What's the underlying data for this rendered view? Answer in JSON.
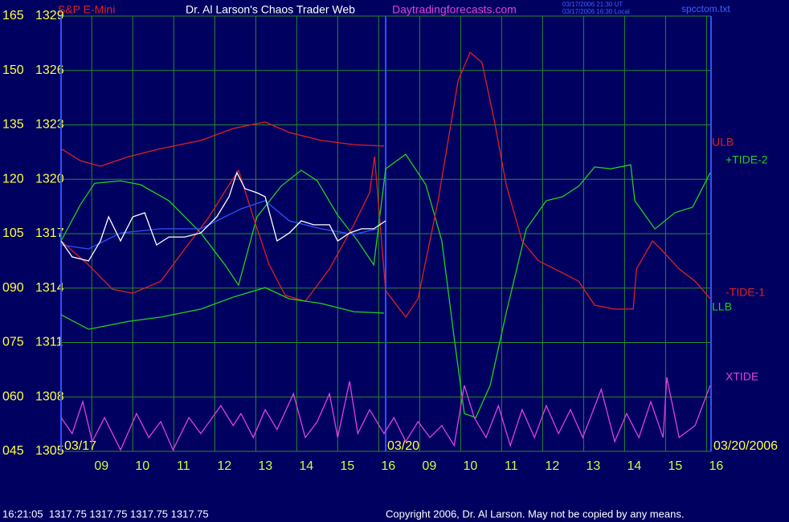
{
  "chart_data": {
    "type": "line",
    "symbol": "S&P E-Mini",
    "title": "Dr. Al Larson's Chaos Trader Web",
    "site": "Daytradingforecasts.com",
    "timestamp_ut": "03/17/2006 21:30 UT",
    "timestamp_local": "03/17/2006 16:30 Local",
    "file": "spcctom.txt",
    "date_labels": [
      "03/17",
      "03/20",
      "03/20/2006"
    ],
    "xlim": [
      0,
      15.86
    ],
    "xticks": [
      {
        "value": 0.75,
        "label": "09"
      },
      {
        "value": 1.75,
        "label": "10"
      },
      {
        "value": 2.75,
        "label": "11"
      },
      {
        "value": 3.75,
        "label": "12"
      },
      {
        "value": 4.75,
        "label": "13"
      },
      {
        "value": 5.75,
        "label": "14"
      },
      {
        "value": 6.75,
        "label": "15"
      },
      {
        "value": 7.75,
        "label": "16"
      },
      {
        "value": 8.75,
        "label": "09"
      },
      {
        "value": 9.75,
        "label": "10"
      },
      {
        "value": 10.75,
        "label": "11"
      },
      {
        "value": 11.75,
        "label": "12"
      },
      {
        "value": 12.75,
        "label": "13"
      },
      {
        "value": 13.75,
        "label": "14"
      },
      {
        "value": 14.75,
        "label": "15"
      },
      {
        "value": 15.75,
        "label": "16"
      }
    ],
    "ylim": [
      45,
      165
    ],
    "yticks": [
      165,
      150,
      135,
      120,
      105,
      {
        "value": 90,
        "label": "090"
      },
      {
        "value": 75,
        "label": "075"
      },
      {
        "value": 60,
        "label": "060"
      },
      {
        "value": 45,
        "label": "045"
      }
    ],
    "y2lim": [
      1305,
      1329
    ],
    "y2ticks": [
      1329,
      1326,
      1323,
      1320,
      1317,
      1314,
      1311,
      1308,
      1305
    ],
    "grid": true,
    "series": [
      {
        "name": "ULB",
        "color": "#e02020",
        "axis": "y2",
        "x": [
          0,
          0.47,
          0.96,
          1.65,
          2.43,
          3.41,
          4.2,
          4.98,
          5.57,
          6.35,
          7.14,
          7.88
        ],
        "values": [
          1321.69,
          1321.03,
          1320.72,
          1321.25,
          1321.69,
          1322.14,
          1322.8,
          1323.16,
          1322.58,
          1322.14,
          1321.91,
          1321.83
        ]
      },
      {
        "name": "+TIDE-2",
        "color": "#20d020",
        "x": [
          0,
          0.47,
          0.82,
          1.45,
          1.94,
          2.63,
          3.41,
          4.0,
          4.33,
          4.78,
          5.37,
          5.86,
          6.25,
          6.75,
          7.24,
          7.63,
          7.92,
          8.41,
          8.9,
          9.29,
          9.59,
          9.84,
          10.12,
          10.47,
          10.86,
          11.35,
          11.84,
          12.24,
          12.63,
          13.02,
          13.41,
          13.9,
          14.0,
          14.49,
          14.98,
          15.41,
          15.84
        ],
        "values": [
          103.0,
          113.0,
          118.9,
          119.6,
          118.5,
          114.1,
          105.2,
          96.4,
          90.8,
          109.6,
          118.1,
          122.5,
          119.6,
          110.1,
          103.0,
          96.4,
          122.9,
          126.9,
          118.5,
          103.0,
          76.4,
          55.4,
          54.3,
          63.2,
          83.1,
          106.3,
          114.1,
          115.2,
          118.1,
          123.4,
          122.9,
          124.0,
          114.1,
          106.3,
          110.8,
          112.3,
          121.8
        ]
      },
      {
        "name": "-TIDE-1",
        "color": "#e02020",
        "x": [
          0,
          0.67,
          1.25,
          1.75,
          2.43,
          3.02,
          3.61,
          4.0,
          4.33,
          4.69,
          5.08,
          5.47,
          5.96,
          6.55,
          7.14,
          7.53,
          7.65,
          7.92,
          8.41,
          8.71,
          9.2,
          9.69,
          9.98,
          10.27,
          10.57,
          10.86,
          11.25,
          11.65,
          12.24,
          12.63,
          13.02,
          13.51,
          13.96,
          14.04,
          14.43,
          14.63,
          15.08,
          15.47,
          15.84
        ],
        "values": [
          103.0,
          96.4,
          89.7,
          88.6,
          91.9,
          100.8,
          109.6,
          116.7,
          122.5,
          109.6,
          96.4,
          88.0,
          86.4,
          95.3,
          107.4,
          116.3,
          126.3,
          89.3,
          82.0,
          87.1,
          114.1,
          147.3,
          155.0,
          152.2,
          136.2,
          118.5,
          103.0,
          97.5,
          94.2,
          91.9,
          85.3,
          84.2,
          84.2,
          95.3,
          103.0,
          100.8,
          95.3,
          91.9,
          87.1
        ]
      },
      {
        "name": "LLB",
        "color": "#20d020",
        "axis": "y2",
        "x": [
          0,
          0.67,
          1.65,
          2.43,
          3.41,
          4.2,
          4.98,
          5.57,
          6.35,
          7.14,
          7.88
        ],
        "values": [
          1312.53,
          1311.73,
          1312.17,
          1312.4,
          1312.84,
          1313.5,
          1314.03,
          1313.41,
          1313.15,
          1312.7,
          1312.62
        ]
      },
      {
        "name": "XTIDE",
        "color": "#e040e0",
        "x": [
          0,
          0.27,
          0.53,
          0.76,
          1.06,
          1.45,
          1.84,
          2.14,
          2.43,
          2.73,
          3.12,
          3.41,
          3.9,
          4.2,
          4.39,
          4.69,
          4.98,
          5.27,
          5.67,
          5.96,
          6.25,
          6.55,
          6.75,
          7.04,
          7.24,
          7.53,
          7.88,
          8.12,
          8.41,
          8.71,
          9.0,
          9.29,
          9.59,
          9.84,
          10.08,
          10.37,
          10.67,
          10.96,
          11.25,
          11.55,
          11.84,
          12.14,
          12.43,
          12.73,
          13.18,
          13.51,
          13.8,
          14.1,
          14.39,
          14.69,
          14.78,
          15.08,
          15.47,
          15.84
        ],
        "values": [
          54.3,
          49.9,
          58.7,
          47.7,
          54.3,
          45.4,
          55.4,
          48.8,
          53.2,
          45.4,
          54.3,
          49.9,
          57.6,
          52.1,
          55.4,
          48.8,
          56.5,
          51.0,
          60.9,
          48.8,
          53.2,
          60.9,
          48.8,
          64.3,
          49.9,
          56.5,
          49.9,
          54.3,
          47.7,
          53.2,
          48.8,
          52.1,
          46.6,
          63.2,
          54.3,
          48.8,
          57.6,
          46.6,
          56.5,
          48.8,
          57.6,
          49.9,
          56.5,
          48.8,
          62.1,
          47.7,
          55.4,
          48.8,
          58.7,
          48.8,
          65.4,
          48.8,
          52.1,
          63.2
        ]
      },
      {
        "color": "#3050ff",
        "axis": "y2",
        "x": [
          0,
          0.67,
          1.45,
          2.43,
          3.41,
          4.39,
          4.98,
          5.57,
          6.35,
          7.14,
          7.73
        ],
        "values": [
          1316.38,
          1316.16,
          1317.04,
          1317.27,
          1317.27,
          1318.37,
          1318.82,
          1317.71,
          1317.27,
          1316.96,
          1317.27
        ]
      },
      {
        "color": "#ffffff",
        "axis": "y2",
        "x": [
          0,
          0.27,
          0.67,
          0.96,
          1.16,
          1.45,
          1.75,
          2.04,
          2.33,
          2.63,
          3.02,
          3.41,
          3.8,
          4.1,
          4.29,
          4.49,
          4.78,
          4.98,
          5.27,
          5.57,
          5.86,
          6.16,
          6.55,
          6.75,
          7.04,
          7.33,
          7.63,
          7.92
        ],
        "values": [
          1316.6,
          1315.72,
          1315.5,
          1316.6,
          1317.93,
          1316.6,
          1317.93,
          1318.15,
          1316.38,
          1316.82,
          1316.82,
          1317.04,
          1317.93,
          1319.04,
          1320.37,
          1319.48,
          1319.26,
          1319.04,
          1316.6,
          1317.04,
          1317.71,
          1317.49,
          1317.49,
          1316.6,
          1317.04,
          1317.27,
          1317.27,
          1317.71
        ]
      }
    ]
  },
  "footer": {
    "quote": "16:21:05  1317.75 1317.75 1317.75 1317.75",
    "copyright": "Copyright 2006, Dr. Al Larson. May not be copied by any means."
  }
}
